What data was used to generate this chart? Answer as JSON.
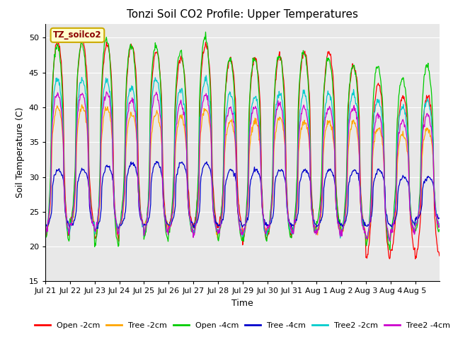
{
  "title": "Tonzi Soil CO2 Profile: Upper Temperatures",
  "xlabel": "Time",
  "ylabel": "Soil Temperature (C)",
  "ylim": [
    15,
    52
  ],
  "yticks": [
    15,
    20,
    25,
    30,
    35,
    40,
    45,
    50
  ],
  "annotation_text": "TZ_soilco2",
  "series": [
    {
      "label": "Open -2cm",
      "color": "#ff0000"
    },
    {
      "label": "Tree -2cm",
      "color": "#ffa500"
    },
    {
      "label": "Open -4cm",
      "color": "#00cc00"
    },
    {
      "label": "Tree -4cm",
      "color": "#0000cc"
    },
    {
      "label": "Tree2 -2cm",
      "color": "#00cccc"
    },
    {
      "label": "Tree2 -4cm",
      "color": "#cc00cc"
    }
  ],
  "n_days": 16,
  "samples_per_day": 48,
  "x_tick_labels": [
    "Jul 21",
    "Jul 22",
    "Jul 23",
    "Jul 24",
    "Jul 25",
    "Jul 26",
    "Jul 27",
    "Jul 28",
    "Jul 29",
    "Jul 30",
    "Jul 31",
    "Aug 1",
    "Aug 2",
    "Aug 3",
    "Aug 4",
    "Aug 5"
  ],
  "x_tick_positions": [
    0,
    48,
    96,
    144,
    192,
    240,
    288,
    336,
    384,
    432,
    480,
    528,
    576,
    624,
    672,
    720
  ]
}
